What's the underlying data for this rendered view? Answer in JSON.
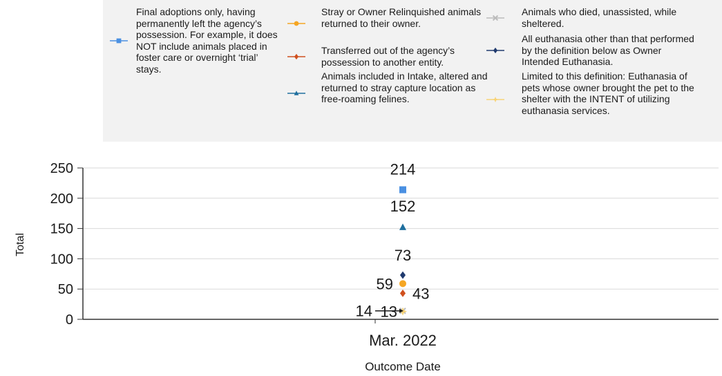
{
  "chart_data": {
    "type": "scatter",
    "title": "",
    "xlabel": "Outcome Date",
    "ylabel": "Total",
    "categories": [
      "Mar. 2022"
    ],
    "ylim": [
      0,
      250
    ],
    "yticks": [
      "0",
      "50",
      "100",
      "150",
      "200",
      "250"
    ],
    "grid": "horizontal",
    "legend_position": "top",
    "series": [
      {
        "name": "Final adoptions only, having permanently left the agency’s possession. For example, it does NOT include animals placed in foster care or overnight ‘trial’ stays.",
        "values": [
          214
        ],
        "label": "214",
        "color": "#4a90e2",
        "marker": "square"
      },
      {
        "name": "Stray or Owner Relinquished animals returned to their owner.",
        "values": [
          59
        ],
        "label": "59",
        "color": "#f5a623",
        "marker": "circle"
      },
      {
        "name": "Transferred out of the agency’s possession to another entity.",
        "values": [
          43
        ],
        "label": "43",
        "color": "#d0501e",
        "marker": "diamond"
      },
      {
        "name": "Animals included in Intake, altered and returned to stray capture location as free-roaming felines.",
        "values": [
          152
        ],
        "label": "152",
        "color": "#1f6f9e",
        "marker": "triangle"
      },
      {
        "name": "Animals who died, unassisted, while sheltered.",
        "values": [
          14
        ],
        "label": "14",
        "color": "#bbbbbb",
        "marker": "x"
      },
      {
        "name": "All euthanasia other than that performed by the definition below as Owner Intended Euthanasia.",
        "values": [
          73
        ],
        "label": "73",
        "color": "#1f3a6e",
        "marker": "diamond"
      },
      {
        "name": "Limited to this definition: Euthanasia of pets whose owner brought the pet to the shelter with the INTENT of utilizing euthanasia services.",
        "values": [
          13
        ],
        "label": "13",
        "color": "#f8d377",
        "marker": "star"
      }
    ]
  }
}
